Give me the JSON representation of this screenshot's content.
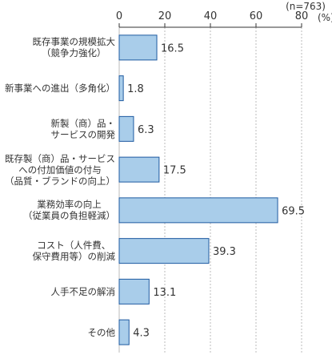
{
  "note": "(n=763)",
  "unit_label": "(%)",
  "chart_data": {
    "type": "bar",
    "orientation": "horizontal",
    "categories": [
      [
        "既存事業の規模拡大",
        "（競争力強化）"
      ],
      [
        "新事業への進出（多角化）"
      ],
      [
        "新製（商）品・",
        "サービスの開発"
      ],
      [
        "既存製（商）品・サービス",
        "への付加価値の付与",
        "（品質・ブランドの向上）"
      ],
      [
        "業務効率の向上",
        "（従業員の負担軽減）"
      ],
      [
        "コスト（人件費、",
        "保守費用等）の削減"
      ],
      [
        "人手不足の解消"
      ],
      [
        "その他"
      ]
    ],
    "values": [
      16.5,
      1.8,
      6.3,
      17.5,
      69.5,
      39.3,
      13.1,
      4.3
    ],
    "xlim": [
      0,
      80
    ],
    "ticks": [
      0,
      20,
      40,
      60,
      80
    ],
    "tick_labels": [
      "0",
      "20",
      "40",
      "60",
      "80"
    ],
    "title": "",
    "xlabel": "",
    "ylabel": "",
    "grid": true,
    "bar_color": "#a9cdea",
    "bar_border_color": "#1e5aa0"
  }
}
